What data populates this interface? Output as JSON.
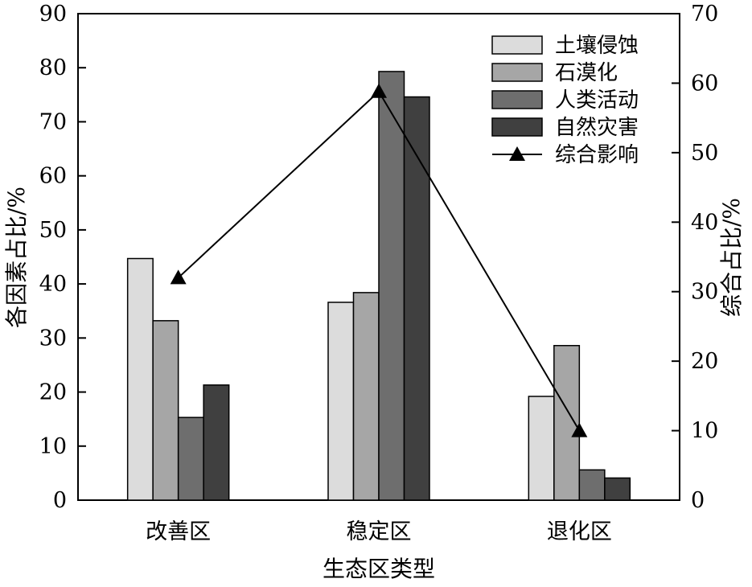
{
  "chart_data": {
    "type": "bar",
    "xlabel": "生态区类型",
    "ylabel": "各因素占比/%",
    "y2label": "综合占比/%",
    "categories": [
      "改善区",
      "稳定区",
      "退化区"
    ],
    "ylim": [
      0,
      90
    ],
    "yticks": [
      0,
      10,
      20,
      30,
      40,
      50,
      60,
      70,
      80,
      90
    ],
    "y2lim": [
      0,
      70
    ],
    "y2ticks": [
      0,
      10,
      20,
      30,
      40,
      50,
      60,
      70
    ],
    "legend_position": "top-right",
    "grid": false,
    "series": [
      {
        "name": "土壤侵蚀",
        "axis": "left",
        "kind": "bar",
        "color": "#dcdcdc",
        "values": [
          44.7,
          36.6,
          19.2
        ]
      },
      {
        "name": "石漠化",
        "axis": "left",
        "kind": "bar",
        "color": "#a6a6a6",
        "values": [
          33.2,
          38.4,
          28.6
        ]
      },
      {
        "name": "人类活动",
        "axis": "left",
        "kind": "bar",
        "color": "#6e6e6e",
        "values": [
          15.3,
          79.3,
          5.6
        ]
      },
      {
        "name": "自然灾害",
        "axis": "left",
        "kind": "bar",
        "color": "#404040",
        "values": [
          21.3,
          74.6,
          4.1
        ]
      },
      {
        "name": "综合影响",
        "axis": "right",
        "kind": "line",
        "marker": "triangle",
        "color": "#000000",
        "values": [
          32.0,
          58.8,
          10.0
        ]
      }
    ]
  }
}
